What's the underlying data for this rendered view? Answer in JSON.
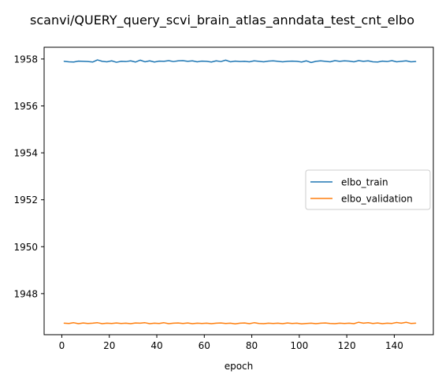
{
  "chart_data": {
    "type": "line",
    "title": "scanvi/QUERY_query_scvi_brain_atlas_anndata_test_cnt_elbo",
    "xlabel": "epoch",
    "ylabel": "",
    "xlim": [
      -7.45,
      156.45
    ],
    "ylim": [
      1946.25,
      1958.5
    ],
    "xticks": [
      0,
      20,
      40,
      60,
      80,
      100,
      120,
      140
    ],
    "yticks": [
      1948,
      1950,
      1952,
      1954,
      1956,
      1958
    ],
    "grid": false,
    "legend_position": "center-right",
    "series": [
      {
        "name": "elbo_train",
        "color": "#1f77b4",
        "x": [
          1,
          3,
          5,
          7,
          9,
          11,
          13,
          15,
          17,
          19,
          21,
          23,
          25,
          27,
          29,
          31,
          33,
          35,
          37,
          39,
          41,
          43,
          45,
          47,
          49,
          51,
          53,
          55,
          57,
          59,
          61,
          63,
          65,
          67,
          69,
          71,
          73,
          75,
          77,
          79,
          81,
          83,
          85,
          87,
          89,
          91,
          93,
          95,
          97,
          99,
          101,
          103,
          105,
          107,
          109,
          111,
          113,
          115,
          117,
          119,
          121,
          123,
          125,
          127,
          129,
          131,
          133,
          135,
          137,
          139,
          141,
          143,
          145,
          147,
          149
        ],
        "values": [
          1957.9,
          1957.88,
          1957.87,
          1957.91,
          1957.9,
          1957.89,
          1957.87,
          1957.96,
          1957.9,
          1957.88,
          1957.92,
          1957.86,
          1957.9,
          1957.89,
          1957.92,
          1957.87,
          1957.95,
          1957.88,
          1957.92,
          1957.87,
          1957.91,
          1957.9,
          1957.93,
          1957.89,
          1957.92,
          1957.93,
          1957.9,
          1957.92,
          1957.88,
          1957.91,
          1957.9,
          1957.87,
          1957.92,
          1957.89,
          1957.95,
          1957.88,
          1957.91,
          1957.89,
          1957.9,
          1957.88,
          1957.92,
          1957.9,
          1957.88,
          1957.91,
          1957.92,
          1957.9,
          1957.88,
          1957.9,
          1957.91,
          1957.9,
          1957.87,
          1957.92,
          1957.85,
          1957.9,
          1957.92,
          1957.9,
          1957.88,
          1957.93,
          1957.9,
          1957.92,
          1957.91,
          1957.88,
          1957.93,
          1957.9,
          1957.92,
          1957.88,
          1957.87,
          1957.91,
          1957.89,
          1957.93,
          1957.88,
          1957.9,
          1957.92,
          1957.88,
          1957.89
        ]
      },
      {
        "name": "elbo_validation",
        "color": "#ff7f0e",
        "x": [
          1,
          3,
          5,
          7,
          9,
          11,
          13,
          15,
          17,
          19,
          21,
          23,
          25,
          27,
          29,
          31,
          33,
          35,
          37,
          39,
          41,
          43,
          45,
          47,
          49,
          51,
          53,
          55,
          57,
          59,
          61,
          63,
          65,
          67,
          69,
          71,
          73,
          75,
          77,
          79,
          81,
          83,
          85,
          87,
          89,
          91,
          93,
          95,
          97,
          99,
          101,
          103,
          105,
          107,
          109,
          111,
          113,
          115,
          117,
          119,
          121,
          123,
          125,
          127,
          129,
          131,
          133,
          135,
          137,
          139,
          141,
          143,
          145,
          147,
          149
        ],
        "values": [
          1946.74,
          1946.73,
          1946.76,
          1946.72,
          1946.75,
          1946.73,
          1946.74,
          1946.76,
          1946.72,
          1946.74,
          1946.73,
          1946.75,
          1946.73,
          1946.74,
          1946.72,
          1946.75,
          1946.74,
          1946.76,
          1946.72,
          1946.74,
          1946.73,
          1946.76,
          1946.72,
          1946.74,
          1946.75,
          1946.73,
          1946.75,
          1946.72,
          1946.74,
          1946.73,
          1946.74,
          1946.72,
          1946.74,
          1946.75,
          1946.73,
          1946.74,
          1946.71,
          1946.74,
          1946.75,
          1946.72,
          1946.76,
          1946.73,
          1946.72,
          1946.74,
          1946.73,
          1946.74,
          1946.72,
          1946.75,
          1946.73,
          1946.74,
          1946.71,
          1946.73,
          1946.74,
          1946.72,
          1946.74,
          1946.75,
          1946.73,
          1946.72,
          1946.74,
          1946.73,
          1946.74,
          1946.72,
          1946.78,
          1946.74,
          1946.76,
          1946.73,
          1946.75,
          1946.72,
          1946.74,
          1946.73,
          1946.77,
          1946.74,
          1946.78,
          1946.73,
          1946.74
        ]
      }
    ]
  }
}
